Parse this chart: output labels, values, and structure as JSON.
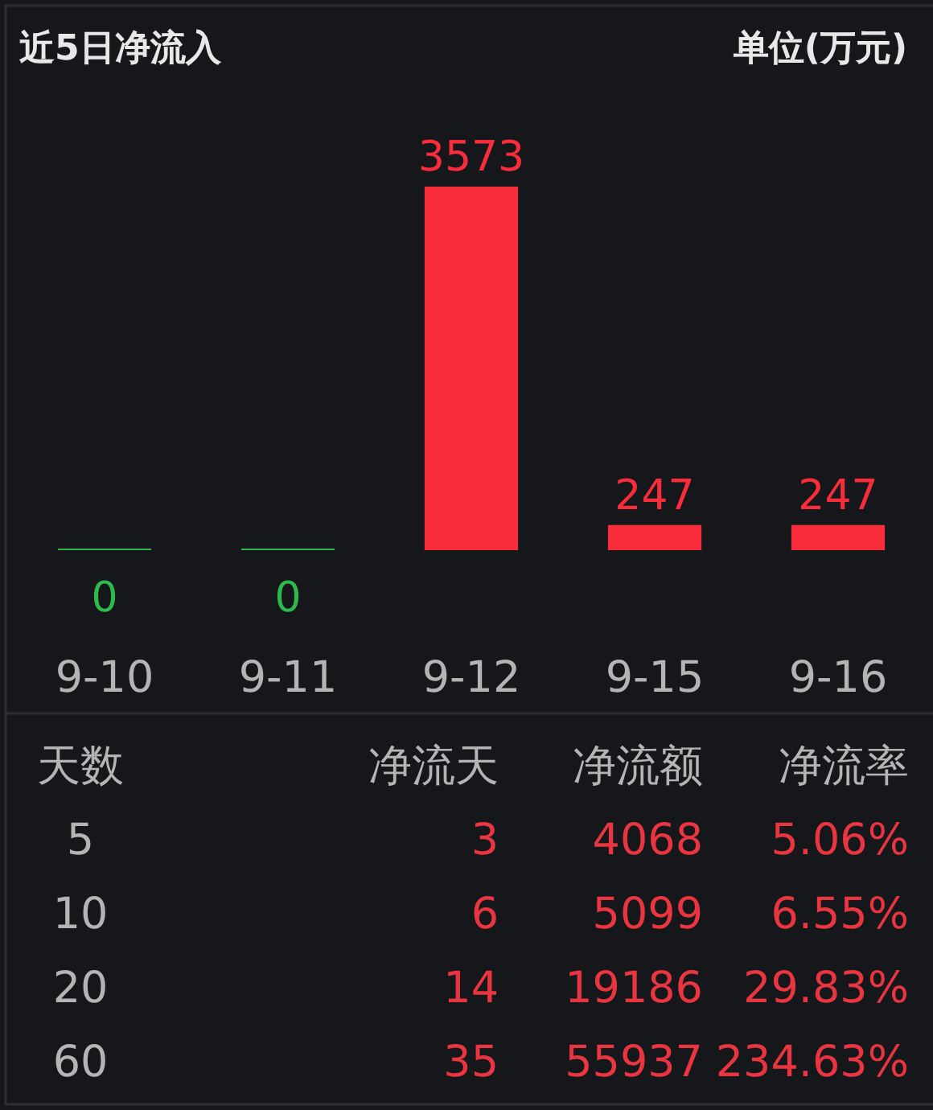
{
  "chart_data": [
    {
      "type": "bar",
      "title": "近5日净流入",
      "ylabel": "单位(万元)",
      "categories": [
        "9-10",
        "9-11",
        "9-12",
        "9-15",
        "9-16"
      ],
      "values": [
        0,
        0,
        3573,
        247,
        247
      ],
      "colors": [
        "#2fb84c",
        "#2fb84c",
        "#f82c3a",
        "#f82c3a",
        "#f82c3a"
      ],
      "data_labels": true
    },
    {
      "type": "other",
      "annotations": [
        "天数",
        "净流天",
        "净流额",
        "净流率",
        "5",
        "3",
        "4068",
        "5.06%",
        "10",
        "6",
        "5099",
        "6.55%",
        "20",
        "14",
        "19186",
        "29.83%",
        "60",
        "35",
        "55937",
        "234.63%"
      ]
    }
  ]
}
